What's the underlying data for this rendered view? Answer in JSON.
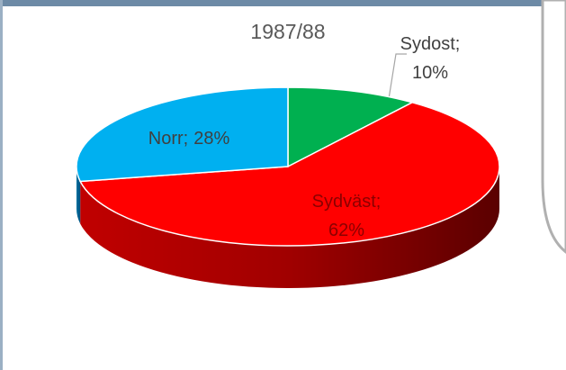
{
  "chart_data": {
    "type": "pie",
    "title": "1987/88",
    "categories": [
      "Sydost",
      "Sydväst",
      "Norr"
    ],
    "values": [
      10,
      62,
      28
    ],
    "value_labels": [
      "10%",
      "62%",
      "28%"
    ],
    "label_separator": ";",
    "colors": [
      "#00b050",
      "#ff0000",
      "#00b0f0"
    ],
    "three_d": true
  }
}
